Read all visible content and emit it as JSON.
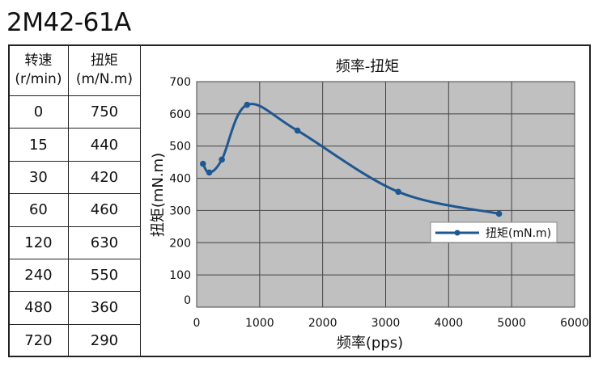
{
  "model": "2M42-61A",
  "table": {
    "headers": [
      {
        "line1": "转速",
        "line2": "(r/min)"
      },
      {
        "line1": "扭矩",
        "line2": "(m/N.m)"
      }
    ],
    "rows": [
      [
        "0",
        "750"
      ],
      [
        "15",
        "440"
      ],
      [
        "30",
        "420"
      ],
      [
        "60",
        "460"
      ],
      [
        "120",
        "630"
      ],
      [
        "240",
        "550"
      ],
      [
        "480",
        "360"
      ],
      [
        "720",
        "290"
      ]
    ]
  },
  "chart_data": {
    "type": "line",
    "title": "频率-扭矩",
    "xlabel": "频率(pps)",
    "ylabel": "扭矩(mN.m)",
    "xlim": [
      0,
      6000
    ],
    "ylim": [
      0,
      700
    ],
    "xticks": [
      0,
      1000,
      2000,
      3000,
      4000,
      5000,
      6000
    ],
    "yticks": [
      0,
      100,
      200,
      300,
      400,
      500,
      600,
      700
    ],
    "grid": true,
    "legend": "right",
    "series": [
      {
        "name": "扭矩(mN.m)",
        "color": "#1f5791",
        "x": [
          100,
          200,
          400,
          800,
          1600,
          3200,
          4800
        ],
        "y": [
          445,
          418,
          458,
          628,
          548,
          358,
          290
        ]
      }
    ]
  }
}
